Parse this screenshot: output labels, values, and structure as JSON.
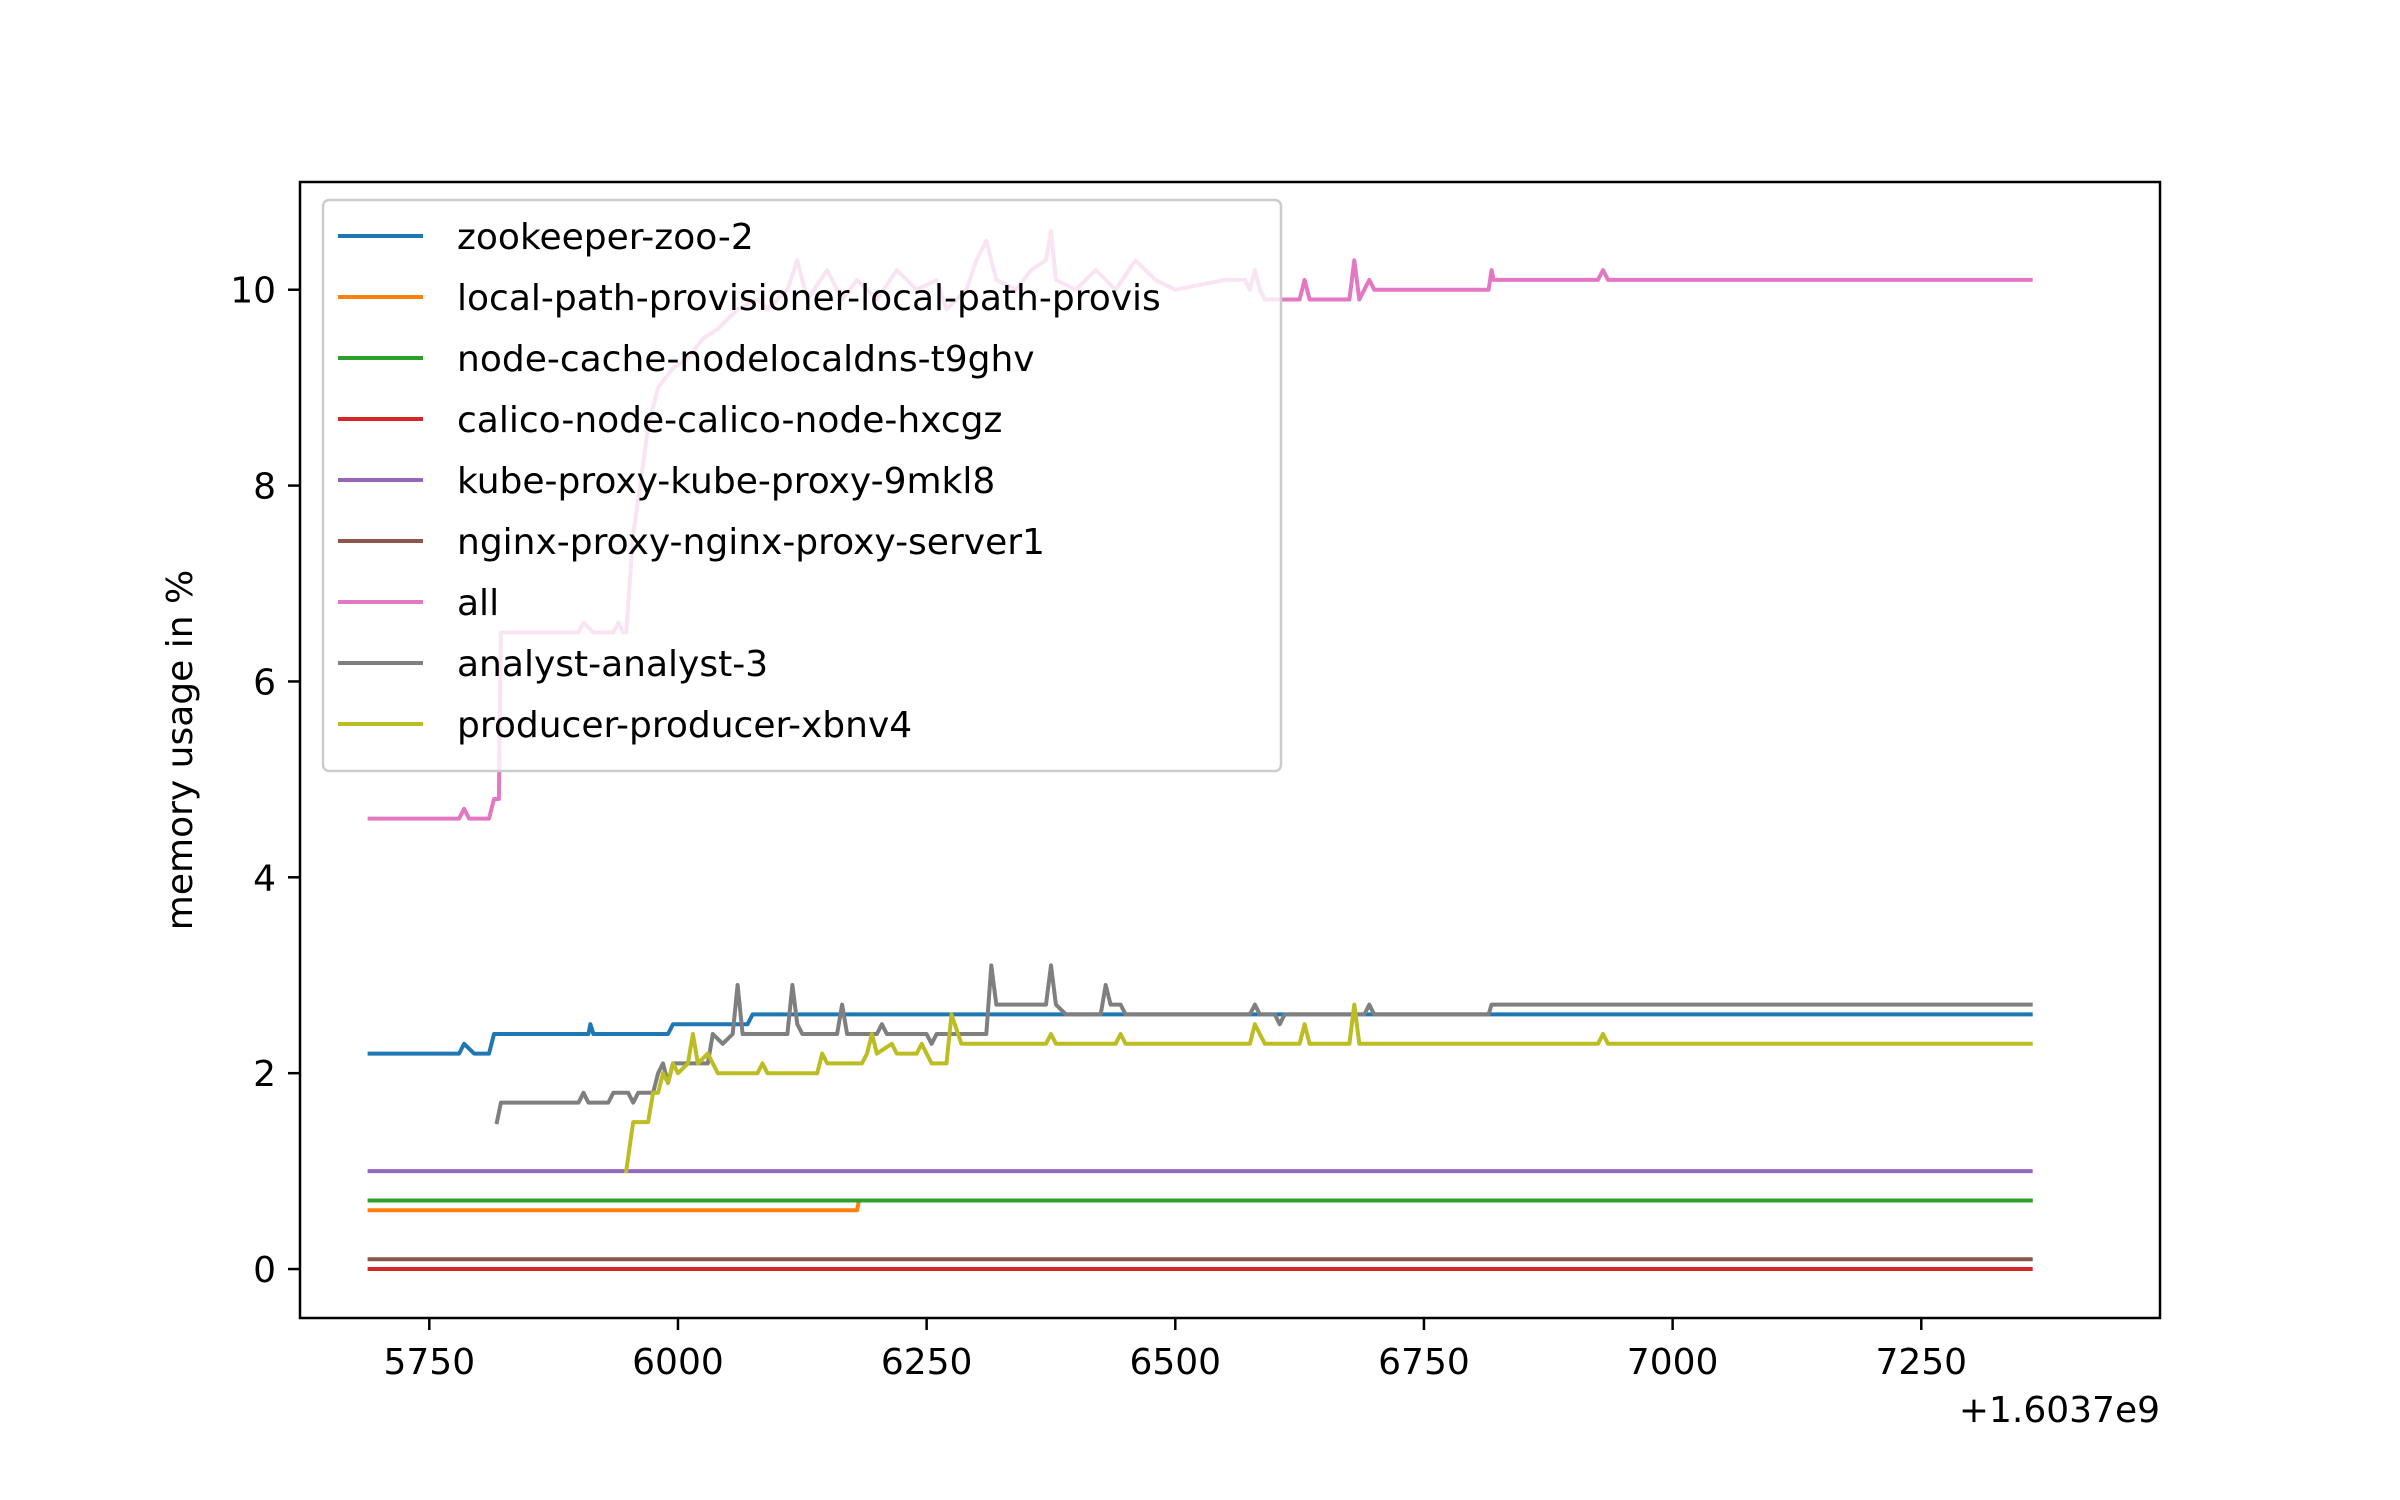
{
  "chart_data": {
    "type": "line",
    "title": "",
    "xlabel": "",
    "ylabel": "memory usage in %",
    "x_offset_label": "+1.6037e9",
    "xlim": [
      5620,
      7490
    ],
    "ylim": [
      -0.5,
      11.1
    ],
    "xticks": [
      5750,
      6000,
      6250,
      6500,
      6750,
      7000,
      7250
    ],
    "yticks": [
      0,
      2,
      4,
      6,
      8,
      10
    ],
    "grid": false,
    "legend_position": "upper-left",
    "series": [
      {
        "name": "zookeeper-zoo-2",
        "color": "#1f77b4",
        "points": [
          [
            5690,
            2.2
          ],
          [
            5780,
            2.2
          ],
          [
            5785,
            2.3
          ],
          [
            5795,
            2.2
          ],
          [
            5810,
            2.2
          ],
          [
            5815,
            2.4
          ],
          [
            5910,
            2.4
          ],
          [
            5912,
            2.5
          ],
          [
            5915,
            2.4
          ],
          [
            5990,
            2.4
          ],
          [
            5995,
            2.5
          ],
          [
            6070,
            2.5
          ],
          [
            6075,
            2.6
          ],
          [
            7360,
            2.6
          ]
        ]
      },
      {
        "name": "local-path-provisioner-local-path-provis",
        "color": "#ff7f0e",
        "points": [
          [
            5690,
            0.6
          ],
          [
            6180,
            0.6
          ],
          [
            6182,
            0.7
          ],
          [
            7360,
            0.7
          ]
        ]
      },
      {
        "name": "node-cache-nodelocaldns-t9ghv",
        "color": "#2ca02c",
        "points": [
          [
            5690,
            0.7
          ],
          [
            7360,
            0.7
          ]
        ]
      },
      {
        "name": "calico-node-calico-node-hxcgz",
        "color": "#d62728",
        "points": [
          [
            5690,
            0.0
          ],
          [
            7360,
            0.0
          ]
        ]
      },
      {
        "name": "kube-proxy-kube-proxy-9mkl8",
        "color": "#9467bd",
        "points": [
          [
            5690,
            1.0
          ],
          [
            7360,
            1.0
          ]
        ]
      },
      {
        "name": "nginx-proxy-nginx-proxy-server1",
        "color": "#8c564b",
        "points": [
          [
            5690,
            0.1
          ],
          [
            7360,
            0.1
          ]
        ]
      },
      {
        "name": "all",
        "color": "#e377c2",
        "points": [
          [
            5690,
            4.6
          ],
          [
            5780,
            4.6
          ],
          [
            5785,
            4.7
          ],
          [
            5790,
            4.6
          ],
          [
            5810,
            4.6
          ],
          [
            5815,
            4.8
          ],
          [
            5820,
            4.8
          ],
          [
            5822,
            6.5
          ],
          [
            5900,
            6.5
          ],
          [
            5905,
            6.6
          ],
          [
            5915,
            6.5
          ],
          [
            5935,
            6.5
          ],
          [
            5940,
            6.6
          ],
          [
            5945,
            6.5
          ],
          [
            5948,
            6.5
          ],
          [
            5955,
            7.5
          ],
          [
            5962,
            8.0
          ],
          [
            5970,
            8.6
          ],
          [
            5980,
            9.0
          ],
          [
            5995,
            9.2
          ],
          [
            6010,
            9.3
          ],
          [
            6025,
            9.5
          ],
          [
            6040,
            9.6
          ],
          [
            6060,
            9.8
          ],
          [
            6080,
            9.9
          ],
          [
            6090,
            9.8
          ],
          [
            6110,
            10.0
          ],
          [
            6120,
            10.3
          ],
          [
            6130,
            9.9
          ],
          [
            6150,
            10.2
          ],
          [
            6165,
            9.9
          ],
          [
            6180,
            10.1
          ],
          [
            6200,
            9.9
          ],
          [
            6220,
            10.2
          ],
          [
            6240,
            10.0
          ],
          [
            6260,
            10.1
          ],
          [
            6270,
            9.8
          ],
          [
            6290,
            10.0
          ],
          [
            6300,
            10.3
          ],
          [
            6310,
            10.5
          ],
          [
            6320,
            10.1
          ],
          [
            6340,
            10.0
          ],
          [
            6355,
            10.2
          ],
          [
            6370,
            10.3
          ],
          [
            6375,
            10.6
          ],
          [
            6380,
            10.1
          ],
          [
            6400,
            10.0
          ],
          [
            6420,
            10.2
          ],
          [
            6440,
            10.0
          ],
          [
            6460,
            10.3
          ],
          [
            6480,
            10.1
          ],
          [
            6500,
            10.0
          ],
          [
            6550,
            10.1
          ],
          [
            6570,
            10.1
          ],
          [
            6575,
            10.0
          ],
          [
            6580,
            10.2
          ],
          [
            6585,
            10.0
          ],
          [
            6590,
            9.9
          ],
          [
            6625,
            9.9
          ],
          [
            6630,
            10.1
          ],
          [
            6635,
            9.9
          ],
          [
            6675,
            9.9
          ],
          [
            6680,
            10.3
          ],
          [
            6685,
            9.9
          ],
          [
            6690,
            10.0
          ],
          [
            6695,
            10.1
          ],
          [
            6700,
            10.0
          ],
          [
            6815,
            10.0
          ],
          [
            6818,
            10.2
          ],
          [
            6820,
            10.1
          ],
          [
            6925,
            10.1
          ],
          [
            6930,
            10.2
          ],
          [
            6935,
            10.1
          ],
          [
            7360,
            10.1
          ]
        ]
      },
      {
        "name": "analyst-analyst-3",
        "color": "#7f7f7f",
        "points": [
          [
            5818,
            1.5
          ],
          [
            5822,
            1.7
          ],
          [
            5900,
            1.7
          ],
          [
            5905,
            1.8
          ],
          [
            5910,
            1.7
          ],
          [
            5930,
            1.7
          ],
          [
            5935,
            1.8
          ],
          [
            5950,
            1.8
          ],
          [
            5955,
            1.7
          ],
          [
            5960,
            1.8
          ],
          [
            5975,
            1.8
          ],
          [
            5980,
            2.0
          ],
          [
            5985,
            2.1
          ],
          [
            5990,
            1.9
          ],
          [
            5995,
            2.1
          ],
          [
            6030,
            2.1
          ],
          [
            6035,
            2.4
          ],
          [
            6045,
            2.3
          ],
          [
            6055,
            2.4
          ],
          [
            6060,
            2.9
          ],
          [
            6065,
            2.4
          ],
          [
            6110,
            2.4
          ],
          [
            6115,
            2.9
          ],
          [
            6120,
            2.5
          ],
          [
            6125,
            2.4
          ],
          [
            6160,
            2.4
          ],
          [
            6165,
            2.7
          ],
          [
            6170,
            2.4
          ],
          [
            6200,
            2.4
          ],
          [
            6205,
            2.5
          ],
          [
            6210,
            2.4
          ],
          [
            6250,
            2.4
          ],
          [
            6255,
            2.3
          ],
          [
            6260,
            2.4
          ],
          [
            6310,
            2.4
          ],
          [
            6315,
            3.1
          ],
          [
            6320,
            2.7
          ],
          [
            6370,
            2.7
          ],
          [
            6375,
            3.1
          ],
          [
            6380,
            2.7
          ],
          [
            6390,
            2.6
          ],
          [
            6425,
            2.6
          ],
          [
            6430,
            2.9
          ],
          [
            6435,
            2.7
          ],
          [
            6445,
            2.7
          ],
          [
            6450,
            2.6
          ],
          [
            6575,
            2.6
          ],
          [
            6580,
            2.7
          ],
          [
            6585,
            2.6
          ],
          [
            6600,
            2.6
          ],
          [
            6605,
            2.5
          ],
          [
            6610,
            2.6
          ],
          [
            6690,
            2.6
          ],
          [
            6695,
            2.7
          ],
          [
            6700,
            2.6
          ],
          [
            6815,
            2.6
          ],
          [
            6818,
            2.7
          ],
          [
            7360,
            2.7
          ]
        ]
      },
      {
        "name": "producer-producer-xbnv4",
        "color": "#bcbd22",
        "points": [
          [
            5948,
            1.0
          ],
          [
            5955,
            1.5
          ],
          [
            5970,
            1.5
          ],
          [
            5975,
            1.8
          ],
          [
            5980,
            1.8
          ],
          [
            5985,
            2.0
          ],
          [
            5990,
            1.9
          ],
          [
            5995,
            2.1
          ],
          [
            6000,
            2.0
          ],
          [
            6010,
            2.1
          ],
          [
            6015,
            2.4
          ],
          [
            6020,
            2.1
          ],
          [
            6030,
            2.2
          ],
          [
            6040,
            2.0
          ],
          [
            6080,
            2.0
          ],
          [
            6085,
            2.1
          ],
          [
            6090,
            2.0
          ],
          [
            6140,
            2.0
          ],
          [
            6145,
            2.2
          ],
          [
            6150,
            2.1
          ],
          [
            6185,
            2.1
          ],
          [
            6190,
            2.2
          ],
          [
            6195,
            2.4
          ],
          [
            6200,
            2.2
          ],
          [
            6215,
            2.3
          ],
          [
            6220,
            2.2
          ],
          [
            6240,
            2.2
          ],
          [
            6245,
            2.3
          ],
          [
            6250,
            2.2
          ],
          [
            6255,
            2.1
          ],
          [
            6270,
            2.1
          ],
          [
            6275,
            2.6
          ],
          [
            6285,
            2.3
          ],
          [
            6370,
            2.3
          ],
          [
            6375,
            2.4
          ],
          [
            6380,
            2.3
          ],
          [
            6440,
            2.3
          ],
          [
            6445,
            2.4
          ],
          [
            6450,
            2.3
          ],
          [
            6575,
            2.3
          ],
          [
            6580,
            2.5
          ],
          [
            6585,
            2.4
          ],
          [
            6590,
            2.3
          ],
          [
            6625,
            2.3
          ],
          [
            6630,
            2.5
          ],
          [
            6635,
            2.3
          ],
          [
            6675,
            2.3
          ],
          [
            6680,
            2.7
          ],
          [
            6685,
            2.3
          ],
          [
            6925,
            2.3
          ],
          [
            6930,
            2.4
          ],
          [
            6935,
            2.3
          ],
          [
            7360,
            2.3
          ]
        ]
      }
    ]
  }
}
